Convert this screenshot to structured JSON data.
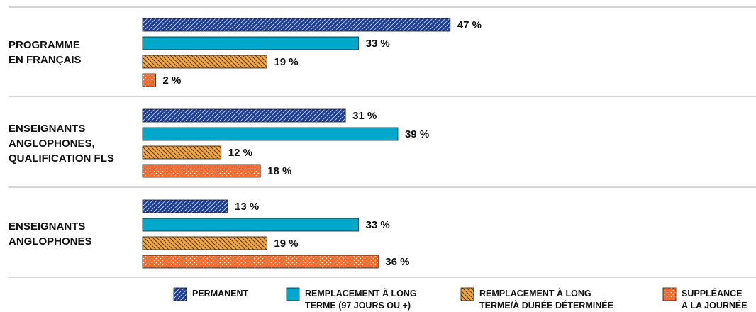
{
  "chart_data": {
    "type": "bar",
    "orientation": "horizontal",
    "categories": [
      "PROGRAMME\nEN FRANÇAIS",
      "ENSEIGNANTS\nANGLOPHONES,\nQUALIFICATION FLS",
      "ENSEIGNANTS\nANGLOPHONES"
    ],
    "series": [
      {
        "name": "PERMANENT",
        "color": "#1f3c8c",
        "values": [
          47,
          31,
          13
        ],
        "value_labels": [
          "47 %",
          "31 %",
          "13 %"
        ]
      },
      {
        "name": "REMPLACEMENT À LONG\nTERME (97 JOURS OU +)",
        "color": "#00a9cc",
        "values": [
          33,
          39,
          33
        ],
        "value_labels": [
          "33 %",
          "39 %",
          "33 %"
        ]
      },
      {
        "name": "REMPLACEMENT À LONG\nTERME/À DURÉE DÉTERMINÉE",
        "color": "#f3a642",
        "values": [
          19,
          12,
          19
        ],
        "value_labels": [
          "19 %",
          "12 %",
          "19 %"
        ]
      },
      {
        "name": "SUPPLÉANCE\nÀ LA JOURNÉE",
        "color": "#f26b2d",
        "values": [
          2,
          18,
          36
        ],
        "value_labels": [
          "2 %",
          "18 %",
          "36 %"
        ]
      }
    ],
    "legend": "bottom"
  }
}
